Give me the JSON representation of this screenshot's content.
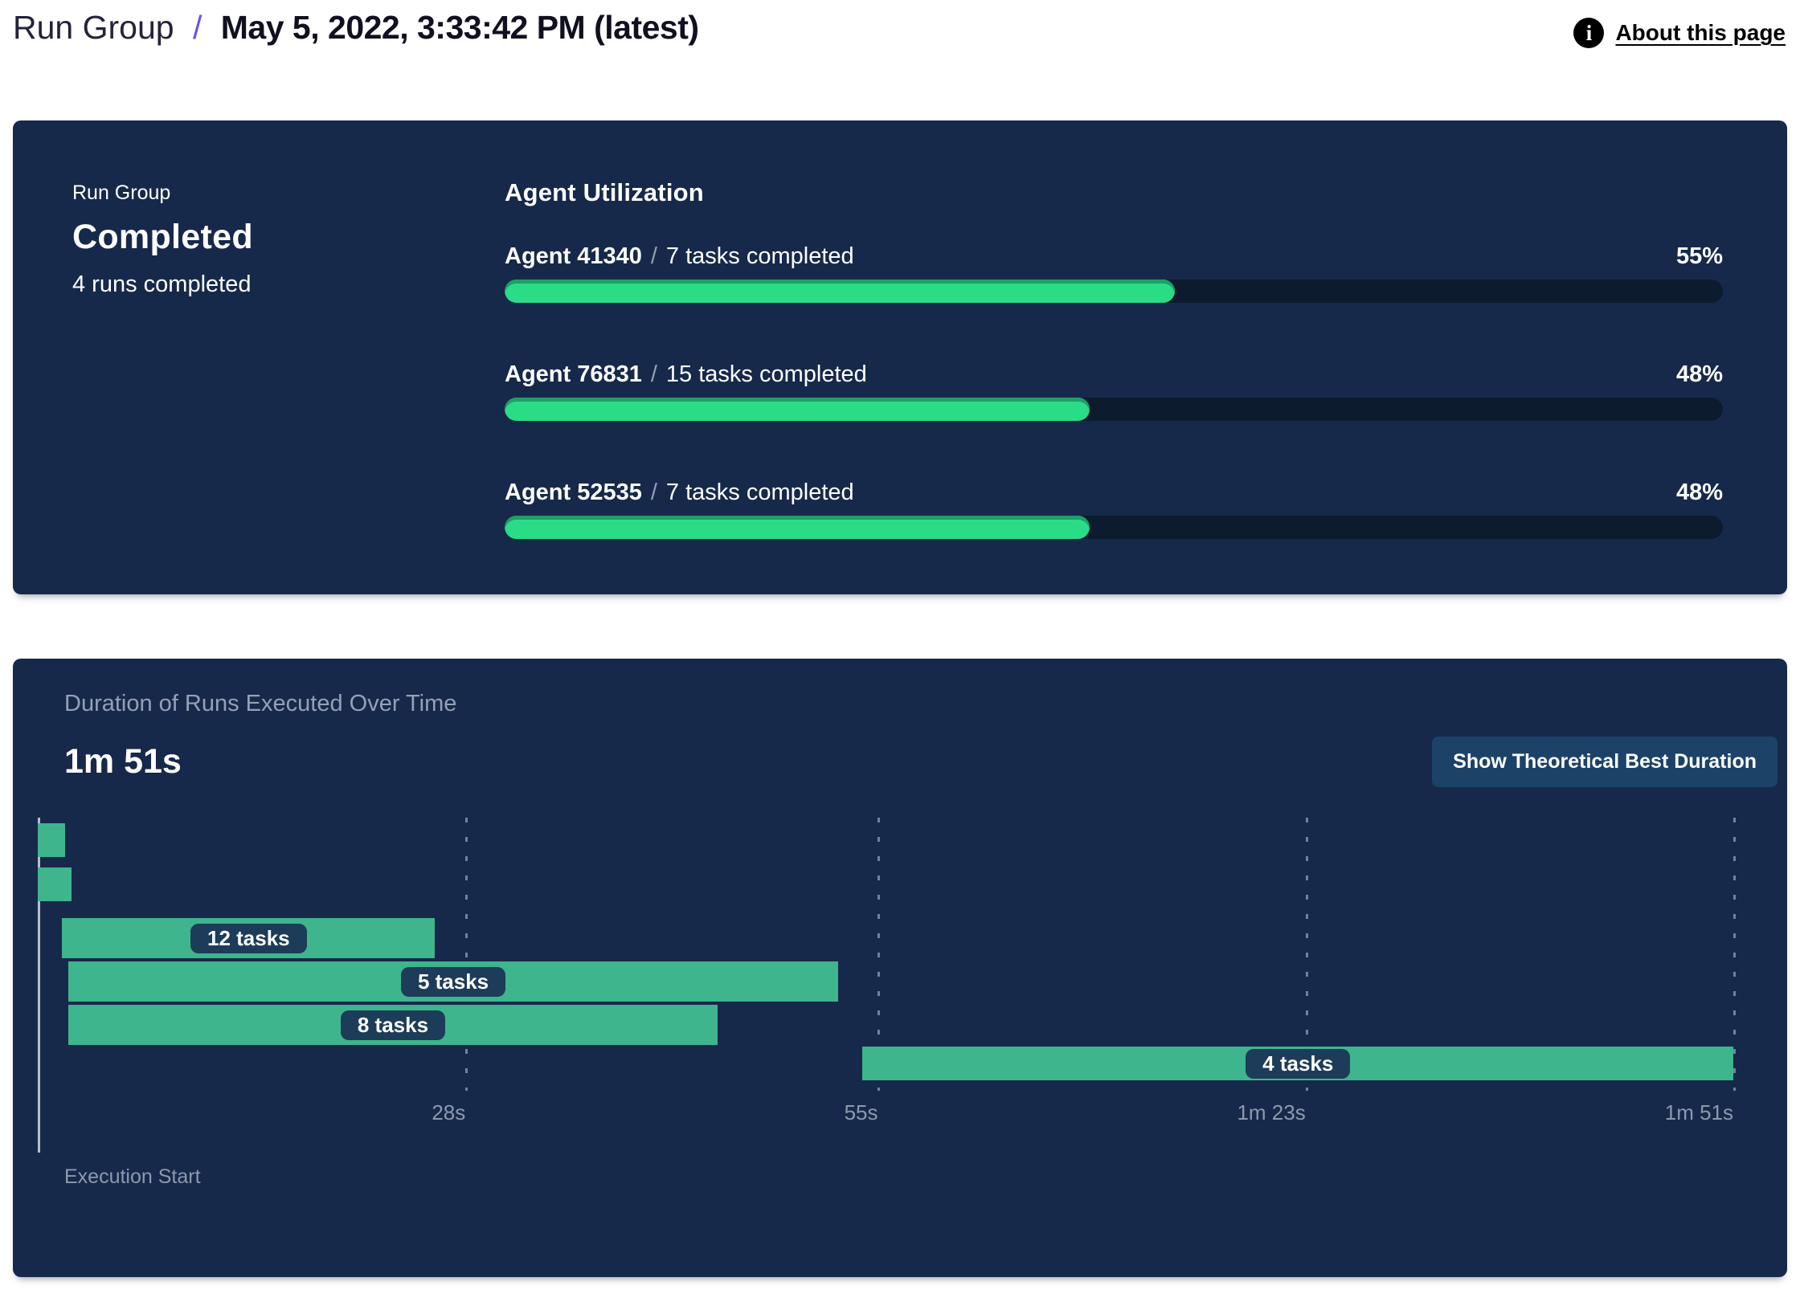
{
  "header": {
    "breadcrumb": "Run Group",
    "separator": "/",
    "title": "May 5, 2022, 3:33:42 PM (latest)",
    "about_link_label": "About this page"
  },
  "colors": {
    "panel_bg": "#16294B",
    "progress_track": "#0D1B2E",
    "progress_fill": "#2BDC86",
    "progress_fill_dark_rim": "#1F9E68",
    "gantt_bar": "#3EB58C",
    "gantt_label_pill": "#1D3C59",
    "breadcrumb_separator_purple": "#6D4DF2",
    "muted_text": "#8D99AD",
    "button_bg": "#1D4268"
  },
  "status_panel": {
    "eyebrow": "Run Group",
    "status": "Completed",
    "runs_completed": "4 runs completed",
    "section_title": "Agent Utilization"
  },
  "duration_panel": {
    "title": "Duration of Runs Executed Over Time",
    "total_duration": "1m 51s",
    "button_label": "Show Theoretical Best Duration",
    "execution_start_label": "Execution Start"
  },
  "chart_data": [
    {
      "type": "bar",
      "variant": "horizontal-progress",
      "title": "Agent Utilization",
      "categories": [
        "Agent 41340",
        "Agent 76831",
        "Agent 52535"
      ],
      "labels": [
        "7 tasks completed",
        "15 tasks completed",
        "7 tasks completed"
      ],
      "separator": "/",
      "series": [
        {
          "name": "utilization",
          "values": [
            55,
            48,
            48
          ]
        }
      ],
      "value_suffix": "%",
      "xlim": [
        0,
        100
      ],
      "legend": "none",
      "grid": "off"
    },
    {
      "type": "bar",
      "variant": "gantt",
      "title": "Duration of Runs Executed Over Time",
      "total_duration_label": "1m 51s",
      "time_unit": "seconds",
      "xlim": [
        0,
        111
      ],
      "x_axis_label": "Execution Start",
      "grid": "dashed-vertical",
      "x_ticks": [
        {
          "label": "28s",
          "seconds": 28
        },
        {
          "label": "55s",
          "seconds": 55
        },
        {
          "label": "1m 23s",
          "seconds": 83
        },
        {
          "label": "1m 51s",
          "seconds": 111
        }
      ],
      "bars": [
        {
          "row": 1,
          "start_s": 0,
          "end_s": 1.8,
          "label": ""
        },
        {
          "row": 2,
          "start_s": 0,
          "end_s": 2.2,
          "label": ""
        },
        {
          "row": 3,
          "start_s": 1.6,
          "end_s": 26,
          "label": "12 tasks"
        },
        {
          "row": 4,
          "start_s": 2,
          "end_s": 52.4,
          "label": "5 tasks"
        },
        {
          "row": 5,
          "start_s": 2,
          "end_s": 44.5,
          "label": "8 tasks"
        },
        {
          "row": 6,
          "start_s": 54,
          "end_s": 111,
          "label": "4 tasks"
        }
      ]
    }
  ]
}
